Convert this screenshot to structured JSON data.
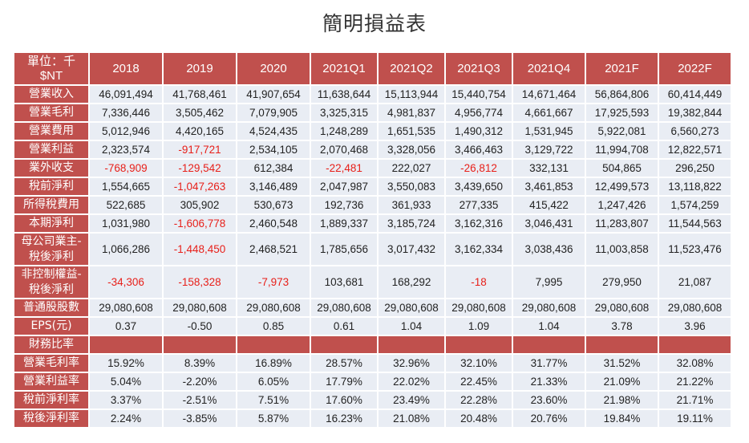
{
  "title": "簡明損益表",
  "header": {
    "unit_label": "單位：千$NT",
    "columns": [
      "2018",
      "2019",
      "2020",
      "2021Q1",
      "2021Q2",
      "2021Q3",
      "2021Q4",
      "2021F",
      "2022F"
    ]
  },
  "rows": [
    {
      "label": "營業收入",
      "values": [
        "46,091,494",
        "41,768,461",
        "41,907,654",
        "11,638,644",
        "15,113,944",
        "15,440,754",
        "14,671,464",
        "56,864,806",
        "60,414,449"
      ]
    },
    {
      "label": "營業毛利",
      "values": [
        "7,336,446",
        "3,505,462",
        "7,079,905",
        "3,325,315",
        "4,981,837",
        "4,956,774",
        "4,661,667",
        "17,925,593",
        "19,382,844"
      ]
    },
    {
      "label": "營業費用",
      "values": [
        "5,012,946",
        "4,420,165",
        "4,524,435",
        "1,248,289",
        "1,651,535",
        "1,490,312",
        "1,531,945",
        "5,922,081",
        "6,560,273"
      ]
    },
    {
      "label": "營業利益",
      "values": [
        "2,323,574",
        "-917,721",
        "2,534,105",
        "2,070,468",
        "3,328,056",
        "3,466,463",
        "3,129,722",
        "11,994,708",
        "12,822,571"
      ]
    },
    {
      "label": "業外收支",
      "values": [
        "-768,909",
        "-129,542",
        "612,384",
        "-22,481",
        "222,027",
        "-26,812",
        "332,131",
        "504,865",
        "296,250"
      ]
    },
    {
      "label": "稅前淨利",
      "values": [
        "1,554,665",
        "-1,047,263",
        "3,146,489",
        "2,047,987",
        "3,550,083",
        "3,439,650",
        "3,461,853",
        "12,499,573",
        "13,118,822"
      ]
    },
    {
      "label": "所得稅費用",
      "values": [
        "522,685",
        "305,902",
        "530,673",
        "192,736",
        "361,933",
        "277,335",
        "415,422",
        "1,247,426",
        "1,574,259"
      ]
    },
    {
      "label": "本期淨利",
      "values": [
        "1,031,980",
        "-1,606,778",
        "2,460,548",
        "1,889,337",
        "3,185,724",
        "3,162,316",
        "3,046,431",
        "11,283,807",
        "11,544,563"
      ]
    },
    {
      "label": "母公司業主-稅後淨利",
      "values": [
        "1,066,286",
        "-1,448,450",
        "2,468,521",
        "1,785,656",
        "3,017,432",
        "3,162,334",
        "3,038,436",
        "11,003,858",
        "11,523,476"
      ]
    },
    {
      "label": "非控制權益-稅後淨利",
      "values": [
        "-34,306",
        "-158,328",
        "-7,973",
        "103,681",
        "168,292",
        "-18",
        "7,995",
        "279,950",
        "21,087"
      ]
    },
    {
      "label": "普通股股數",
      "values": [
        "29,080,608",
        "29,080,608",
        "29,080,608",
        "29,080,608",
        "29,080,608",
        "29,080,608",
        "29,080,608",
        "29,080,608",
        "29,080,608"
      ]
    },
    {
      "label": "EPS(元)",
      "values": [
        "0.37",
        "-0.50",
        "0.85",
        "0.61",
        "1.04",
        "1.09",
        "1.04",
        "3.78",
        "3.96"
      ]
    }
  ],
  "section_label": "財務比率",
  "ratio_rows": [
    {
      "label": "營業毛利率",
      "values": [
        "15.92%",
        "8.39%",
        "16.89%",
        "28.57%",
        "32.96%",
        "32.10%",
        "31.77%",
        "31.52%",
        "32.08%"
      ]
    },
    {
      "label": "營業利益率",
      "values": [
        "5.04%",
        "-2.20%",
        "6.05%",
        "17.79%",
        "22.02%",
        "22.45%",
        "21.33%",
        "21.09%",
        "21.22%"
      ]
    },
    {
      "label": "稅前淨利率",
      "values": [
        "3.37%",
        "-2.51%",
        "7.51%",
        "17.60%",
        "23.49%",
        "22.28%",
        "23.60%",
        "21.98%",
        "21.71%"
      ]
    },
    {
      "label": "稅後淨利率",
      "values": [
        "2.24%",
        "-3.85%",
        "5.87%",
        "16.23%",
        "21.08%",
        "20.48%",
        "20.76%",
        "19.84%",
        "19.11%"
      ]
    }
  ],
  "colors": {
    "header_bg": "#c0504d",
    "negative": "#e8201a",
    "cell_bg": "#e9edf4"
  }
}
